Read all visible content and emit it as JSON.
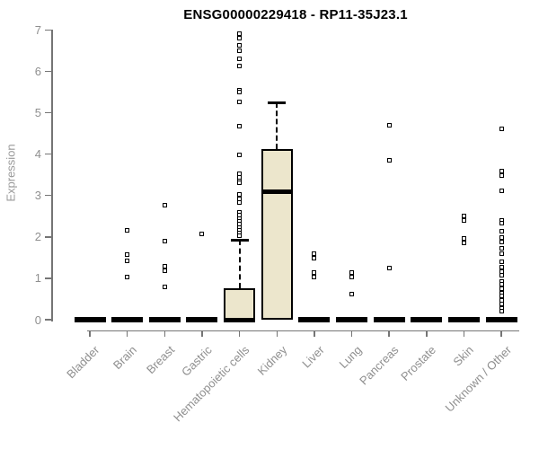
{
  "colors": {
    "box_fill": "#ece6cc",
    "box_border": "#000000",
    "axis": "#757575",
    "tick_text": "#8f8f8f",
    "title_text": "#000000",
    "background": "#ffffff"
  },
  "chart_data": {
    "type": "boxplot",
    "title": "ENSG00000229418 - RP11-35J23.1",
    "ylabel": "Expression",
    "xlabel": "",
    "ylim": [
      0,
      7
    ],
    "yticks": [
      "0",
      "1",
      "2",
      "3",
      "4",
      "5",
      "6",
      "7"
    ],
    "grid": "off",
    "categories": [
      "Bladder",
      "Brain",
      "Breast",
      "Gastric",
      "Hematopoietic cells",
      "Kidney",
      "Liver",
      "Lung",
      "Pancreas",
      "Prostate",
      "Skin",
      "Unknown / Other"
    ],
    "series": [
      {
        "category": "Bladder",
        "q1": 0,
        "median": 0,
        "q3": 0,
        "whisker_low": 0,
        "whisker_high": 0,
        "outliers": []
      },
      {
        "category": "Brain",
        "q1": 0,
        "median": 0,
        "q3": 0,
        "whisker_low": 0,
        "whisker_high": 0,
        "outliers": [
          2.15,
          1.57,
          1.41,
          1.04
        ]
      },
      {
        "category": "Breast",
        "q1": 0,
        "median": 0,
        "q3": 0,
        "whisker_low": 0,
        "whisker_high": 0,
        "outliers": [
          2.76,
          1.89,
          1.28,
          1.19,
          0.8
        ]
      },
      {
        "category": "Gastric",
        "q1": 0,
        "median": 0,
        "q3": 0,
        "whisker_low": 0,
        "whisker_high": 0,
        "outliers": [
          2.07
        ]
      },
      {
        "category": "Hematopoietic cells",
        "q1": 0,
        "median": 0,
        "q3": 0.76,
        "whisker_low": 0,
        "whisker_high": 1.93,
        "outliers": [
          6.9,
          6.8,
          6.62,
          6.5,
          6.3,
          6.12,
          5.55,
          5.5,
          5.27,
          4.67,
          3.98,
          3.52,
          3.44,
          3.36,
          3.3,
          3.02,
          2.92,
          2.82,
          2.6,
          2.52,
          2.44,
          2.37,
          2.3,
          2.23,
          2.16,
          2.09,
          2.02
        ]
      },
      {
        "category": "Kidney",
        "q1": 0,
        "median": 3.1,
        "q3": 4.13,
        "whisker_low": 0,
        "whisker_high": 5.24,
        "outliers": []
      },
      {
        "category": "Liver",
        "q1": 0,
        "median": 0,
        "q3": 0,
        "whisker_low": 0,
        "whisker_high": 0,
        "outliers": [
          1.59,
          1.48,
          1.13,
          1.02
        ]
      },
      {
        "category": "Lung",
        "q1": 0,
        "median": 0,
        "q3": 0,
        "whisker_low": 0,
        "whisker_high": 0,
        "outliers": [
          1.13,
          1.04,
          0.61
        ]
      },
      {
        "category": "Pancreas",
        "q1": 0,
        "median": 0,
        "q3": 0,
        "whisker_low": 0,
        "whisker_high": 0,
        "outliers": [
          4.7,
          3.85,
          1.24
        ]
      },
      {
        "category": "Prostate",
        "q1": 0,
        "median": 0,
        "q3": 0,
        "whisker_low": 0,
        "whisker_high": 0,
        "outliers": []
      },
      {
        "category": "Skin",
        "q1": 0,
        "median": 0,
        "q3": 0,
        "whisker_low": 0,
        "whisker_high": 0,
        "outliers": [
          2.5,
          2.39,
          1.96,
          1.85
        ]
      },
      {
        "category": "Unknown / Other",
        "q1": 0,
        "median": 0,
        "q3": 0,
        "whisker_low": 0,
        "whisker_high": 0,
        "outliers": [
          4.61,
          3.59,
          3.48,
          3.11,
          2.39,
          2.33,
          2.13,
          1.98,
          1.87,
          1.72,
          1.59,
          1.39,
          1.26,
          1.17,
          1.07,
          0.93,
          0.85,
          0.74,
          0.63,
          0.57,
          0.46,
          0.39,
          0.28,
          0.2
        ]
      }
    ]
  }
}
